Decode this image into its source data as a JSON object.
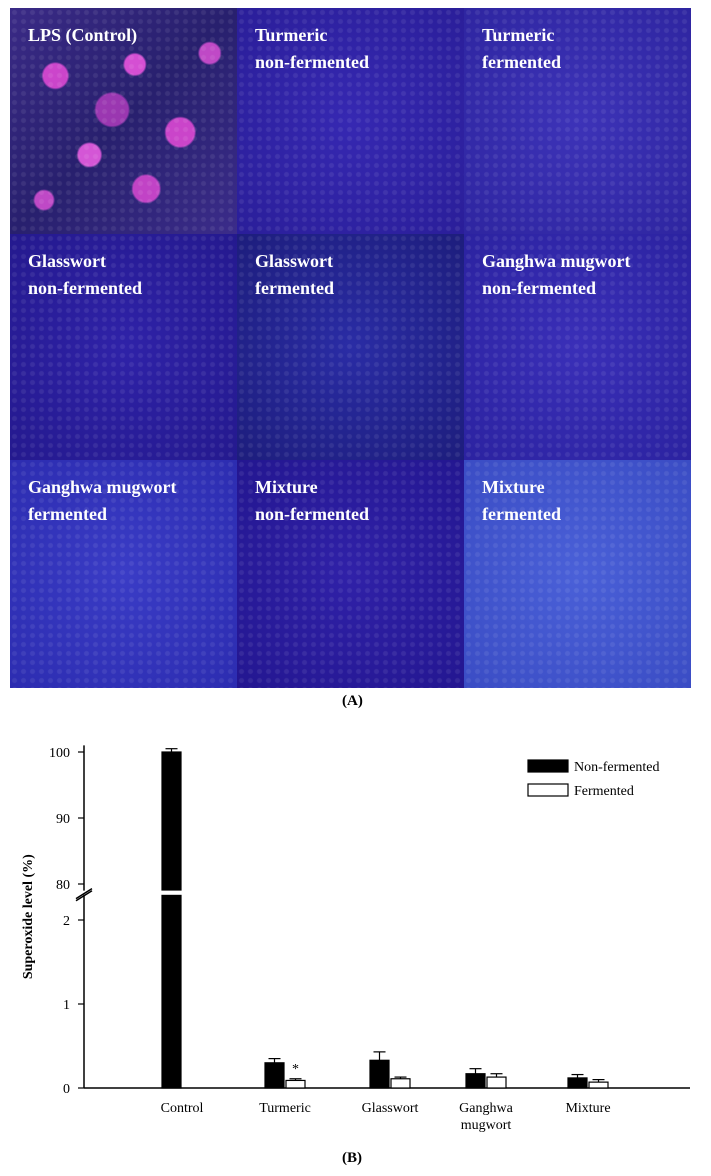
{
  "figure": {
    "panel_a_label": "(A)",
    "panel_b_label": "(B)",
    "micrographs": [
      {
        "label": "LPS (Control)"
      },
      {
        "label": "Turmeric\nnon-fermented"
      },
      {
        "label": "Turmeric\nfermented"
      },
      {
        "label": "Glasswort\nnon-fermented"
      },
      {
        "label": "Glasswort\nfermented"
      },
      {
        "label": "Ganghwa mugwort\nnon-fermented"
      },
      {
        "label": "Ganghwa mugwort\nfermented"
      },
      {
        "label": "Mixture\nnon-fermented"
      },
      {
        "label": "Mixture\nfermented"
      }
    ]
  },
  "chart_data": {
    "type": "bar",
    "ylabel": "Superoxide level (%)",
    "categories": [
      "Control",
      "Turmeric",
      "Glasswort",
      "Ganghwa\nmugwort",
      "Mixture"
    ],
    "series": [
      {
        "name": "Non-fermented",
        "color": "#000000",
        "values": [
          100,
          0.3,
          0.33,
          0.17,
          0.12
        ],
        "errors": [
          0.5,
          0.05,
          0.1,
          0.06,
          0.04
        ]
      },
      {
        "name": "Fermented",
        "color": "#ffffff",
        "values": [
          null,
          0.09,
          0.11,
          0.13,
          0.07
        ],
        "errors": [
          null,
          0.02,
          0.02,
          0.04,
          0.03
        ]
      }
    ],
    "significance": [
      {
        "category": "Turmeric",
        "series": "Fermented",
        "marker": "*"
      }
    ],
    "y_axis_break": {
      "lower_range": [
        0,
        2.3
      ],
      "upper_range": [
        79,
        101
      ]
    },
    "yticks_lower": [
      "0",
      "1",
      "2"
    ],
    "yticks_upper": [
      "80",
      "90",
      "100"
    ],
    "legend_position": "top-right"
  }
}
